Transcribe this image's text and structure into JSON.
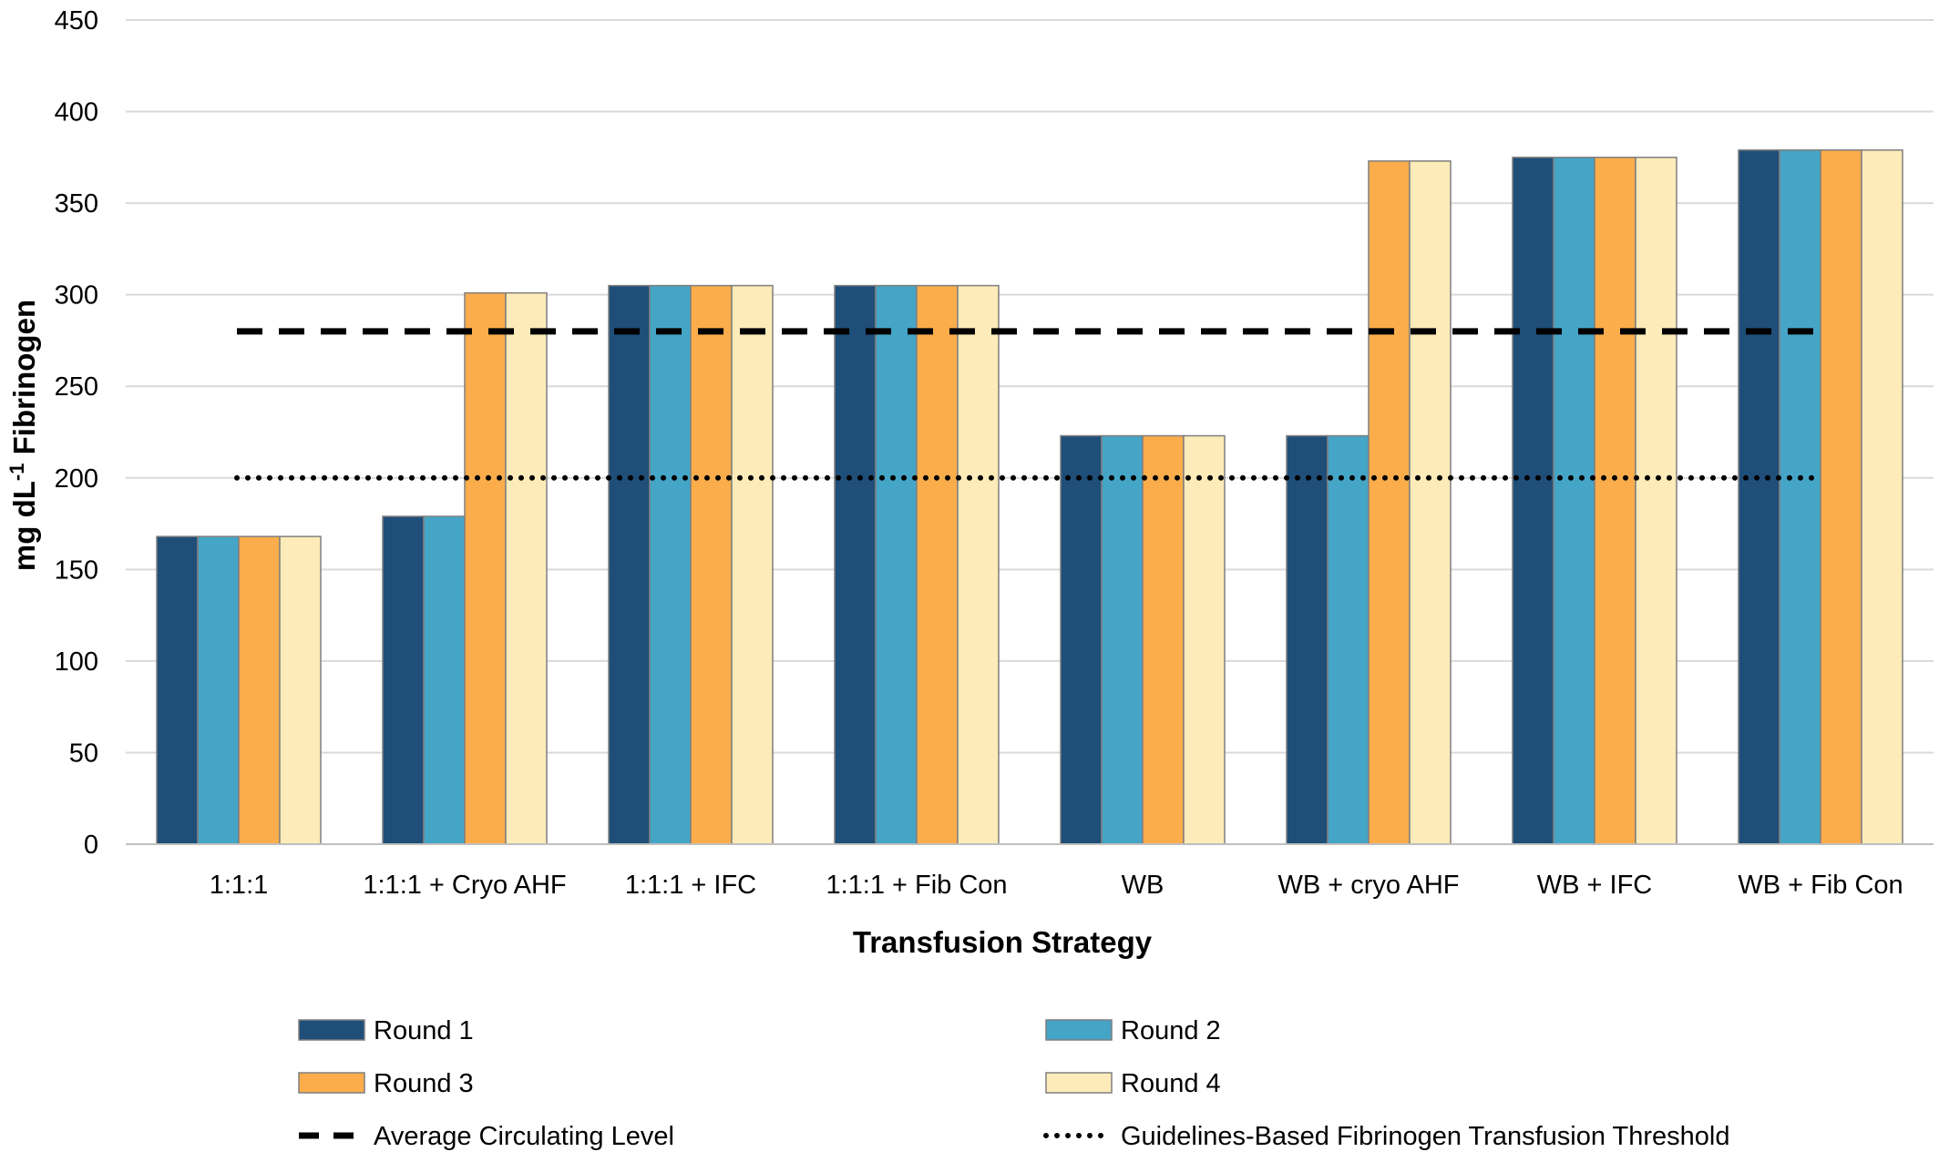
{
  "chart_data": {
    "type": "bar",
    "xlabel": "Transfusion Strategy",
    "ylabel": "mg dL",
    "ylabel_superscript": "-1",
    "ylabel_suffix": " Fibrinogen",
    "ylim": [
      0,
      450
    ],
    "yticks": [
      0,
      50,
      100,
      150,
      200,
      250,
      300,
      350,
      400,
      450
    ],
    "grid": true,
    "legend_position": "bottom",
    "categories": [
      "1:1:1",
      "1:1:1 + Cryo AHF",
      "1:1:1 + IFC",
      "1:1:1 + Fib Con",
      "WB",
      "WB + cryo AHF",
      "WB + IFC",
      "WB + Fib Con"
    ],
    "series": [
      {
        "name": "Round 1",
        "color": "#1F4E79",
        "values": [
          168,
          179,
          305,
          305,
          223,
          223,
          375,
          379
        ]
      },
      {
        "name": "Round 2",
        "color": "#45A5C7",
        "values": [
          168,
          179,
          305,
          305,
          223,
          223,
          375,
          379
        ]
      },
      {
        "name": "Round 3",
        "color": "#FBAD4C",
        "values": [
          168,
          301,
          305,
          305,
          223,
          373,
          375,
          379
        ]
      },
      {
        "name": "Round 4",
        "color": "#FDEBB9",
        "values": [
          168,
          301,
          305,
          305,
          223,
          373,
          375,
          379
        ]
      }
    ],
    "reference_lines": [
      {
        "name": "Average Circulating Level",
        "value": 280,
        "style": "dashed",
        "color": "#000000"
      },
      {
        "name": "Guidelines-Based Fibrinogen Transfusion Threshold",
        "value": 200,
        "style": "dotted",
        "color": "#000000"
      }
    ]
  }
}
